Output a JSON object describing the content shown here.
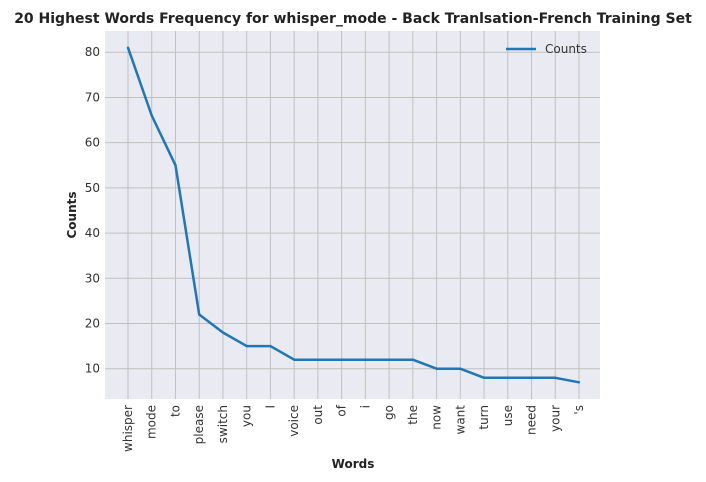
{
  "chart_data": {
    "type": "line",
    "title": "20 Highest Words Frequency for whisper_mode - Back Tranlsation-French Training Set",
    "xlabel": "Words",
    "ylabel": "Counts",
    "categories": [
      "whisper",
      "mode",
      "to",
      "please",
      "switch",
      "you",
      "I",
      "voice",
      "out",
      "of",
      "i",
      "go",
      "the",
      "now",
      "want",
      "turn",
      "use",
      "need",
      "your",
      "'s"
    ],
    "series": [
      {
        "name": "Counts",
        "values": [
          81,
          66,
          55,
          22,
          18,
          15,
          15,
          12,
          12,
          12,
          12,
          12,
          12,
          10,
          10,
          8,
          8,
          8,
          8,
          7
        ]
      }
    ],
    "yticks": [
      10,
      20,
      30,
      40,
      50,
      60,
      70,
      80
    ],
    "ylim": [
      3.3,
      84.7
    ],
    "grid": true,
    "legend": "top-right",
    "colors": {
      "line": "#1f77b4",
      "plot_bg": "#eaeaf2",
      "grid": "#c0c0c0"
    }
  }
}
